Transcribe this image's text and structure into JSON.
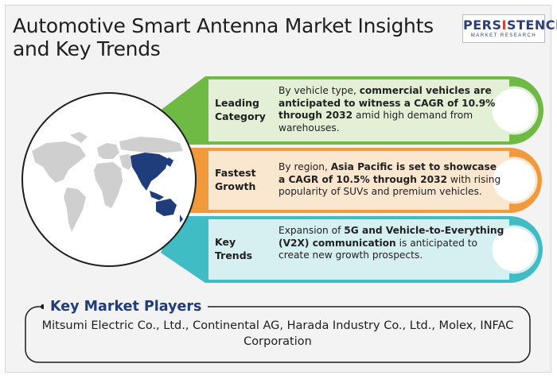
{
  "title": "Automotive Smart Antenna Market Insights and Key Trends",
  "logo": {
    "main_a": "PERS",
    "main_b": "I",
    "main_c": "STENCE",
    "sub": "MARKET RESEARCH"
  },
  "colors": {
    "green": "#6fba45",
    "orange": "#f29a3b",
    "teal": "#3fbcc4",
    "navy": "#1f3d7a",
    "asia_pacific": "#1f3d7a",
    "world": "#cfcfcf"
  },
  "insights": [
    {
      "category": "Leading Category",
      "text_parts": [
        {
          "t": "By vehicle type, ",
          "b": false
        },
        {
          "t": "commercial vehicles are anticipated to witness a CAGR of 10.9% through 2032",
          "b": true
        },
        {
          "t": " amid high demand from warehouses.",
          "b": false
        }
      ]
    },
    {
      "category": "Fastest Growth",
      "text_parts": [
        {
          "t": "By region, ",
          "b": false
        },
        {
          "t": "Asia Pacific is set to showcase a CAGR of 10.5% through 2032",
          "b": true
        },
        {
          "t": " with rising popularity of SUVs and premium vehicles.",
          "b": false
        }
      ]
    },
    {
      "category": "Key Trends",
      "text_parts": [
        {
          "t": "Expansion of ",
          "b": false
        },
        {
          "t": "5G and Vehicle-to-Everything (V2X) communication",
          "b": true
        },
        {
          "t": " is anticipated to create new growth prospects.",
          "b": false
        }
      ]
    }
  ],
  "players": {
    "title": "Key Market Players",
    "list": "Mitsumi Electric Co., Ltd., Continental AG, Harada Industry Co., Ltd., Molex, INFAC Corporation"
  }
}
